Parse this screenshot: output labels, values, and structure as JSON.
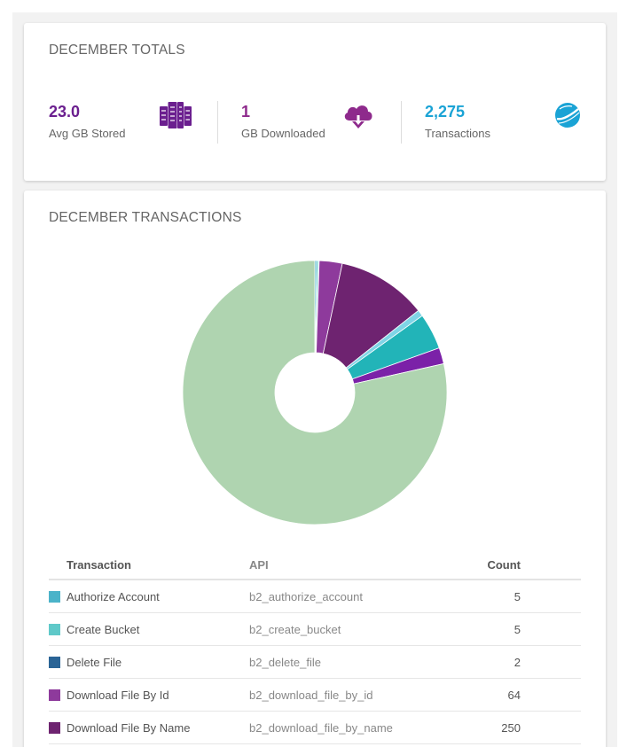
{
  "totals": {
    "title": "DECEMBER TOTALS",
    "stats": [
      {
        "value": "23.0",
        "label": "Avg GB Stored",
        "icon": "server-rack-icon",
        "color": "#6b1f8f"
      },
      {
        "value": "1",
        "label": "GB Downloaded",
        "icon": "cloud-download-icon",
        "color": "#8e2a8c"
      },
      {
        "value": "2,275",
        "label": "Transactions",
        "icon": "globe-icon",
        "color": "#1aa3d5"
      }
    ]
  },
  "transactions": {
    "title": "DECEMBER TRANSACTIONS",
    "columns": {
      "transaction": "Transaction",
      "api": "API",
      "count": "Count"
    },
    "rows": [
      {
        "name": "Authorize Account",
        "api": "b2_authorize_account",
        "count": "5",
        "color": "#4bb3c9"
      },
      {
        "name": "Create Bucket",
        "api": "b2_create_bucket",
        "count": "5",
        "color": "#5fc9c9"
      },
      {
        "name": "Delete File",
        "api": "b2_delete_file",
        "count": "2",
        "color": "#2a6496"
      },
      {
        "name": "Download File By Id",
        "api": "b2_download_file_by_id",
        "count": "64",
        "color": "#8e3a9c"
      },
      {
        "name": "Download File By Name",
        "api": "b2_download_file_by_name",
        "count": "250",
        "color": "#6e2370"
      }
    ]
  },
  "chart_data": {
    "type": "pie",
    "title": "",
    "slices": [
      {
        "label": "Authorize Account",
        "value": 5,
        "color": "#4bb3c9"
      },
      {
        "label": "Create Bucket",
        "value": 5,
        "color": "#5fc9c9"
      },
      {
        "label": "Delete File",
        "value": 2,
        "color": "#2a6496"
      },
      {
        "label": "Download File By Id",
        "value": 64,
        "color": "#8e3a9c"
      },
      {
        "label": "Download File By Name",
        "value": 250,
        "color": "#6e2370"
      },
      {
        "label": "",
        "value": 18,
        "color": "#7fd4e6"
      },
      {
        "label": "",
        "value": 100,
        "color": "#22b4b8"
      },
      {
        "label": "",
        "value": 45,
        "color": "#7b21a8"
      },
      {
        "label": "",
        "value": 1786,
        "color": "#afd4b0"
      }
    ]
  }
}
